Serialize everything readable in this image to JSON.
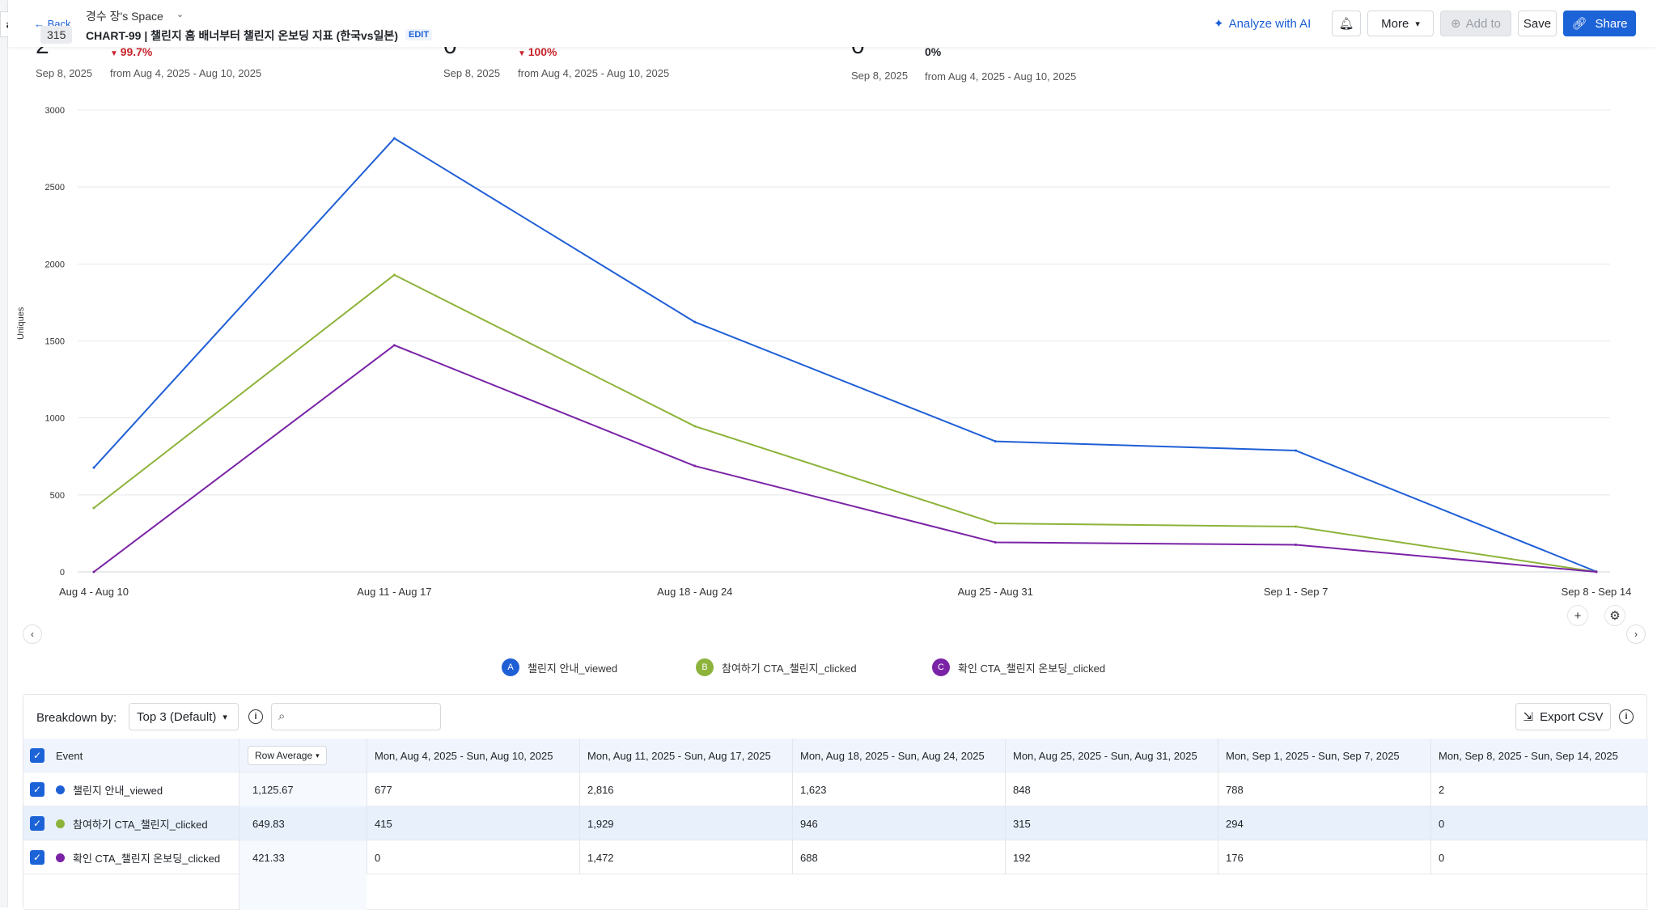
{
  "header": {
    "back_label": "Back",
    "back_badge": "315",
    "space_name": "경수 장's Space",
    "chart_title": "CHART-99 | 챌린지 홈 배너부터 챌린지 온보딩 지표 (한국vs일본)",
    "edit_label": "EDIT",
    "analyze_label": "Analyze with AI",
    "more_label": "More",
    "add_to_label": "Add to",
    "save_label": "Save",
    "share_label": "Share"
  },
  "kpis": [
    {
      "value": "2",
      "date": "Sep 8, 2025",
      "delta": "99.7%",
      "direction": "down",
      "from": "from Aug 4, 2025 - Aug 10, 2025"
    },
    {
      "value": "0",
      "date": "Sep 8, 2025",
      "delta": "100%",
      "direction": "down",
      "from": "from Aug 4, 2025 - Aug 10, 2025"
    },
    {
      "value": "0",
      "date": "Sep 8, 2025",
      "delta": "0%",
      "direction": "none",
      "from": "from Aug 4, 2025 - Aug 10, 2025"
    }
  ],
  "chart_data": {
    "type": "line",
    "title": "",
    "xlabel": "",
    "ylabel": "Uniques",
    "ylim": [
      0,
      3000
    ],
    "yticks": [
      0,
      500,
      1000,
      1500,
      2000,
      2500,
      3000
    ],
    "categories": [
      "Aug 4 - Aug 10",
      "Aug 11 - Aug 17",
      "Aug 18 - Aug 24",
      "Aug 25 - Aug 31",
      "Sep 1 - Sep 7",
      "Sep 8 - Sep 14"
    ],
    "grid": true,
    "legend_position": "bottom",
    "series": [
      {
        "name": "챌린지 안내_viewed",
        "letter": "A",
        "color": "#1f5fd6",
        "values": [
          677,
          2816,
          1623,
          848,
          788,
          2
        ]
      },
      {
        "name": "참여하기 CTA_챌린지_clicked",
        "letter": "B",
        "color": "#8db33a",
        "values": [
          415,
          1929,
          946,
          315,
          294,
          0
        ]
      },
      {
        "name": "확인 CTA_챌린지 온보딩_clicked",
        "letter": "C",
        "color": "#7a23a6",
        "values": [
          0,
          1472,
          688,
          192,
          176,
          0
        ]
      }
    ]
  },
  "table": {
    "breakdown_label": "Breakdown by:",
    "breakdown_value": "Top 3 (Default)",
    "search_placeholder": "",
    "export_label": "Export CSV",
    "event_header": "Event",
    "row_average_label": "Row Average",
    "columns": [
      "Mon, Aug 4, 2025 - Sun, Aug 10, 2025",
      "Mon, Aug 11, 2025 - Sun, Aug 17, 2025",
      "Mon, Aug 18, 2025 - Sun, Aug 24, 2025",
      "Mon, Aug 25, 2025 - Sun, Aug 31, 2025",
      "Mon, Sep 1, 2025 - Sun, Sep 7, 2025",
      "Mon, Sep 8, 2025 - Sun, Sep 14, 2025"
    ],
    "rows": [
      {
        "event": "챌린지 안내_viewed",
        "color": "#1f5fd6",
        "avg": "1,125.67",
        "cells": [
          "677",
          "2,816",
          "1,623",
          "848",
          "788",
          "2"
        ]
      },
      {
        "event": "참여하기 CTA_챌린지_clicked",
        "color": "#8db33a",
        "avg": "649.83",
        "cells": [
          "415",
          "1,929",
          "946",
          "315",
          "294",
          "0"
        ]
      },
      {
        "event": "확인 CTA_챌린지 온보딩_clicked",
        "color": "#7a23a6",
        "avg": "421.33",
        "cells": [
          "0",
          "1,472",
          "688",
          "192",
          "176",
          "0"
        ]
      }
    ]
  }
}
